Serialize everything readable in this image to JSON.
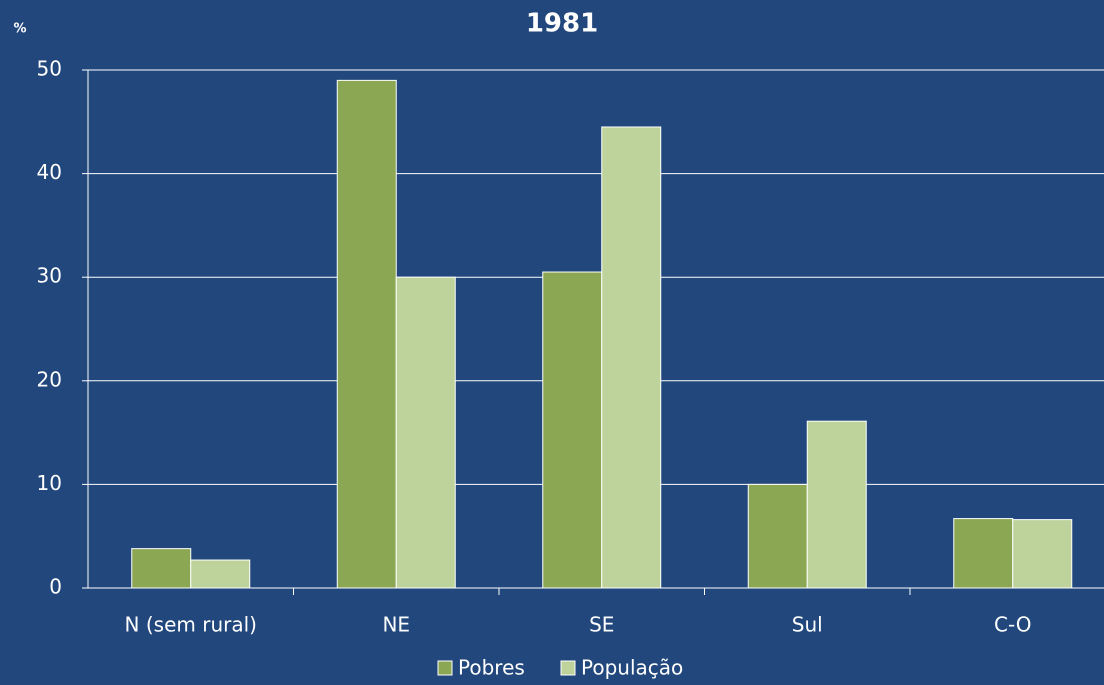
{
  "chart_data": {
    "type": "bar",
    "title": "1981",
    "y_label": "%",
    "categories": [
      "N (sem rural)",
      "NE",
      "SE",
      "Sul",
      "C-O"
    ],
    "series": [
      {
        "name": "Pobres",
        "color": "#8ba753",
        "values": [
          3.8,
          49,
          30.5,
          10,
          6.7
        ]
      },
      {
        "name": "População",
        "color": "#bdd39b",
        "values": [
          2.7,
          30,
          44.5,
          16.1,
          6.6
        ]
      }
    ],
    "ylim": [
      0,
      50
    ],
    "yticks": [
      0,
      10,
      20,
      30,
      40,
      50
    ],
    "grid": true,
    "legend": "bottom"
  }
}
